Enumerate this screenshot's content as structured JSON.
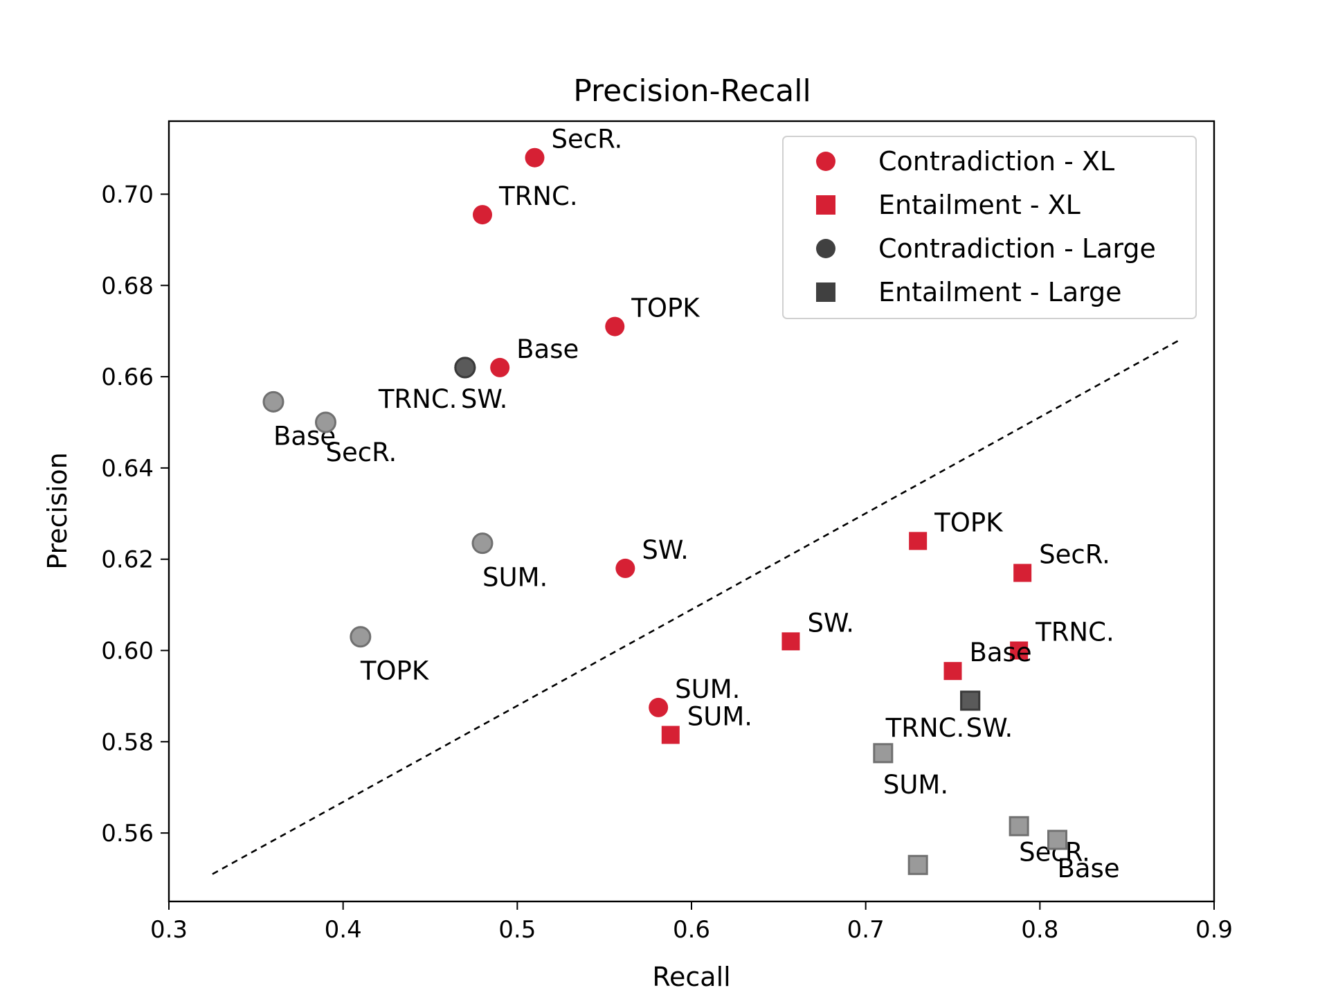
{
  "chart_data": {
    "type": "scatter",
    "title": "Precision-Recall",
    "xlabel": "Recall",
    "ylabel": "Precision",
    "xlim": [
      0.3,
      0.9
    ],
    "ylim": [
      0.545,
      0.716
    ],
    "xticks": [
      "0.3",
      "0.4",
      "0.5",
      "0.6",
      "0.7",
      "0.8",
      "0.9"
    ],
    "yticks": [
      "0.56",
      "0.58",
      "0.60",
      "0.62",
      "0.64",
      "0.66",
      "0.68",
      "0.70"
    ],
    "grid": false,
    "legend_position": "top-right",
    "diagonal_line": {
      "style": "dashed",
      "from": [
        0.325,
        0.551
      ],
      "to": [
        0.88,
        0.668
      ]
    },
    "series": [
      {
        "name": "Contradiction - XL",
        "marker": "circle",
        "color": "#d62034",
        "points": [
          {
            "label": "SecR.",
            "x": 0.51,
            "y": 0.708
          },
          {
            "label": "TRNC.",
            "x": 0.48,
            "y": 0.6955
          },
          {
            "label": "TOPK",
            "x": 0.556,
            "y": 0.671
          },
          {
            "label": "Base",
            "x": 0.49,
            "y": 0.662
          },
          {
            "label": "SW.",
            "x": 0.562,
            "y": 0.618
          },
          {
            "label": "SUM.",
            "x": 0.581,
            "y": 0.5875
          }
        ]
      },
      {
        "name": "Entailment - XL",
        "marker": "square",
        "color": "#d62034",
        "points": [
          {
            "label": "TOPK",
            "x": 0.73,
            "y": 0.624
          },
          {
            "label": "SecR.",
            "x": 0.79,
            "y": 0.617
          },
          {
            "label": "SW.",
            "x": 0.657,
            "y": 0.602
          },
          {
            "label": "TRNC.",
            "x": 0.788,
            "y": 0.6
          },
          {
            "label": "Base",
            "x": 0.75,
            "y": 0.5955
          },
          {
            "label": "SUM.",
            "x": 0.588,
            "y": 0.5815
          }
        ]
      },
      {
        "name": "Contradiction - Large",
        "marker": "circle",
        "color": "#404040",
        "points": [
          {
            "label": "TRNC.",
            "x": 0.47,
            "y": 0.662,
            "color": "#5a5a5a"
          },
          {
            "label": "SW.",
            "x": 0.47,
            "y": 0.662,
            "color": "#5a5a5a"
          },
          {
            "label": "Base",
            "x": 0.36,
            "y": 0.6545,
            "color": "#9a9a9a"
          },
          {
            "label": "SecR.",
            "x": 0.39,
            "y": 0.65,
            "color": "#9a9a9a"
          },
          {
            "label": "SUM.",
            "x": 0.48,
            "y": 0.6235,
            "color": "#9a9a9a"
          },
          {
            "label": "TOPK",
            "x": 0.41,
            "y": 0.603,
            "color": "#9a9a9a"
          }
        ]
      },
      {
        "name": "Entailment - Large",
        "marker": "square",
        "color": "#404040",
        "points": [
          {
            "label": "TRNC.",
            "x": 0.76,
            "y": 0.589,
            "color": "#5a5a5a"
          },
          {
            "label": "SW.",
            "x": 0.76,
            "y": 0.589,
            "color": "#5a5a5a"
          },
          {
            "label": "SUM.",
            "x": 0.71,
            "y": 0.5775,
            "color": "#9a9a9a"
          },
          {
            "label": "SecR.",
            "x": 0.788,
            "y": 0.5615,
            "color": "#9a9a9a"
          },
          {
            "label": "Base",
            "x": 0.81,
            "y": 0.5585,
            "color": "#9a9a9a"
          },
          {
            "label": "",
            "x": 0.73,
            "y": 0.553,
            "color": "#9a9a9a"
          }
        ]
      }
    ]
  }
}
